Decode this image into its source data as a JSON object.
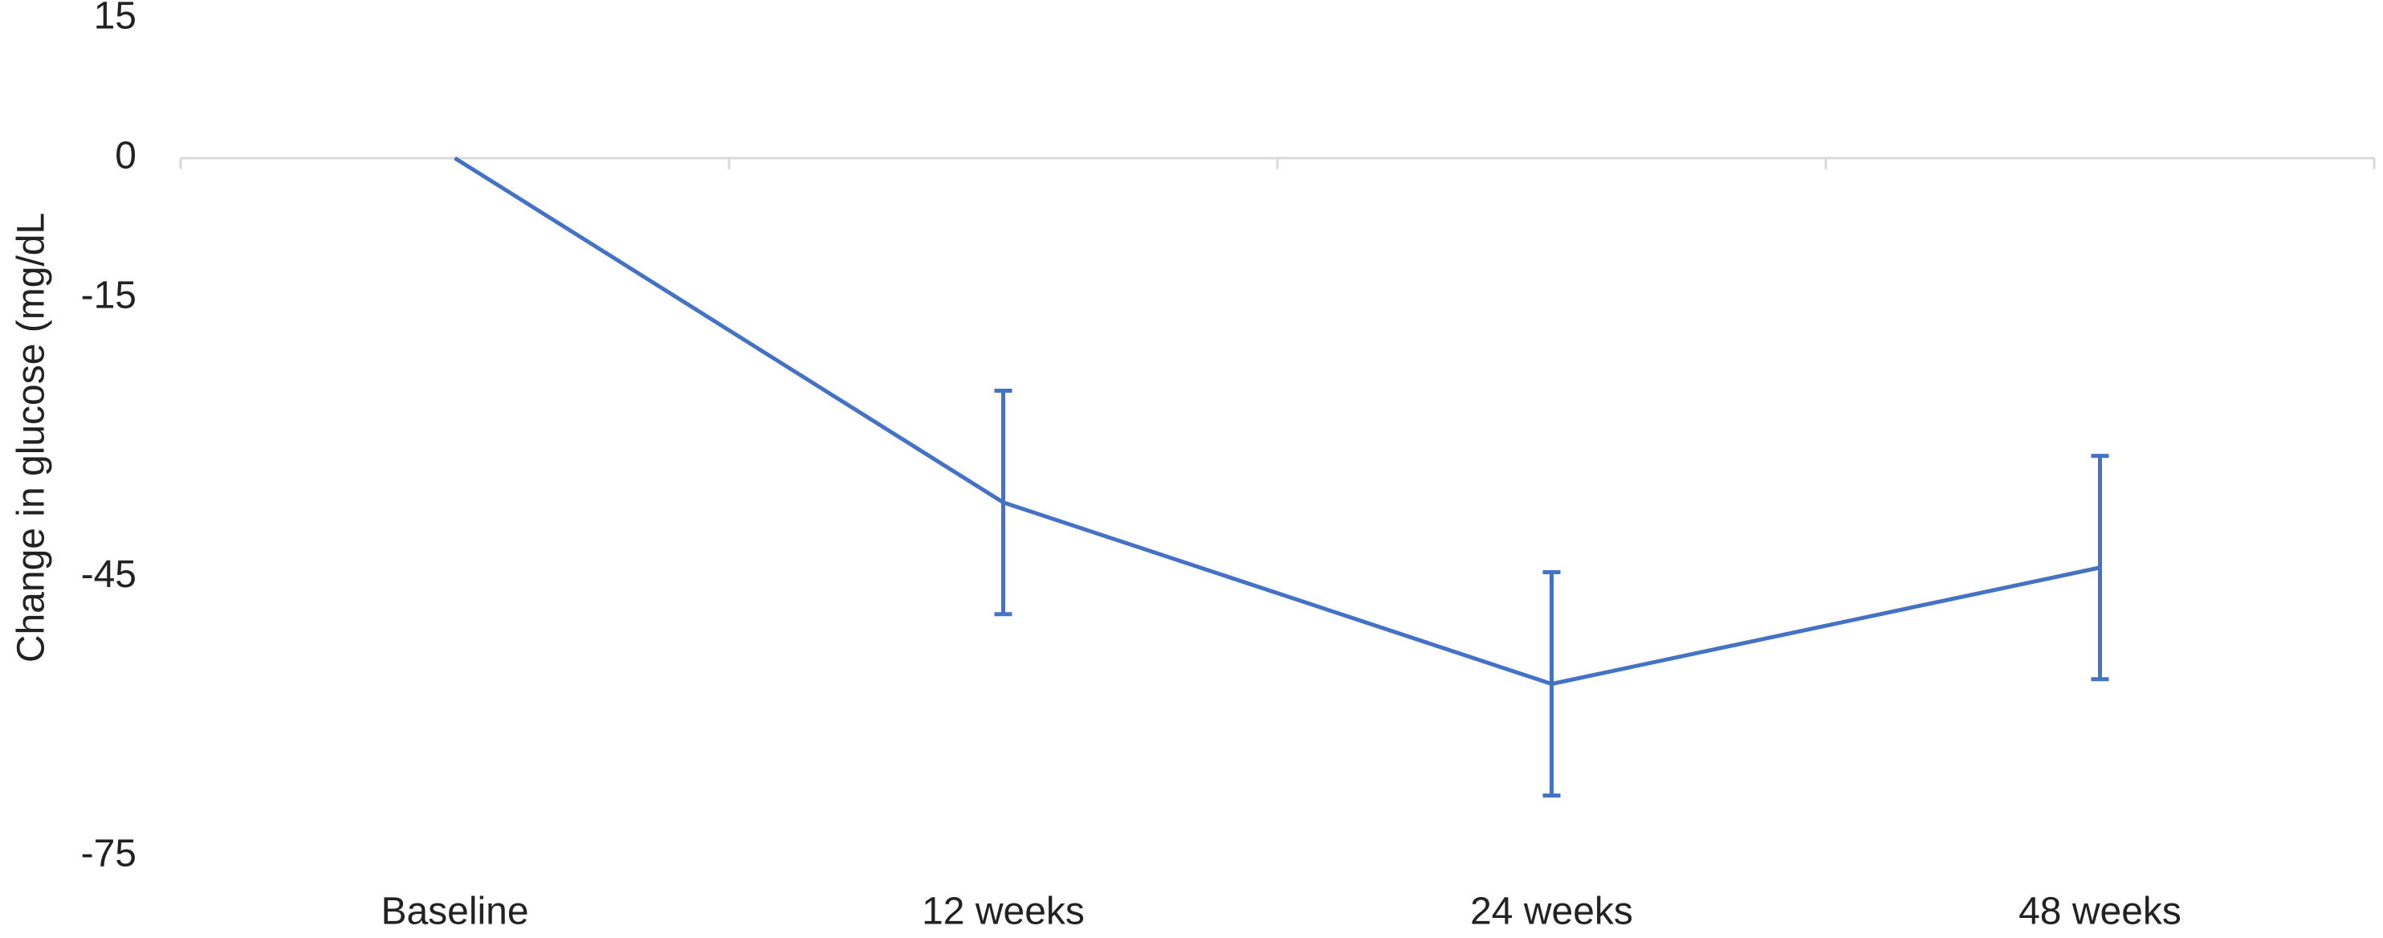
{
  "chart_data": {
    "type": "line",
    "y_label": "Change in glucose (mg/dL",
    "categories": [
      "Baseline",
      "12 weeks",
      "24 weeks",
      "48 weeks"
    ],
    "values": [
      0,
      -37,
      -56.5,
      -44
    ],
    "errors": [
      null,
      12,
      12,
      12
    ],
    "color": "#4472c4",
    "ylim": [
      -75,
      15
    ],
    "yticks": [
      15,
      0,
      -15,
      -45,
      -75
    ]
  }
}
